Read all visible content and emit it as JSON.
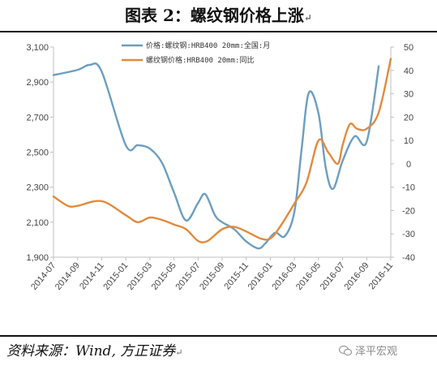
{
  "title": "图表 2：螺纹钢价格上涨",
  "title_mark": "↵",
  "source": "资料来源：Wind, 方正证券",
  "source_mark": "↵",
  "watermark": "泽平宏观",
  "colors": {
    "price": "#6c9ec0",
    "yoy": "#e38a3c",
    "axis": "#bfbfbf",
    "text": "#444444"
  },
  "chart_data": {
    "type": "line",
    "title": "",
    "xlabel": "",
    "ylabel": "",
    "x_ticks": [
      "2014-07",
      "2014-09",
      "2014-11",
      "2015-01",
      "2015-03",
      "2015-05",
      "2015-07",
      "2015-09",
      "2015-11",
      "2016-01",
      "2016-03",
      "2016-05",
      "2016-07",
      "2016-09",
      "2016-11"
    ],
    "y_left": {
      "ticks": [
        "1,900",
        "2,100",
        "2,300",
        "2,500",
        "2,700",
        "2,900",
        "3,100"
      ],
      "ylim": [
        1900,
        3100
      ]
    },
    "y_right": {
      "ticks": [
        "-40",
        "-30",
        "-20",
        "-10",
        "0",
        "10",
        "20",
        "30",
        "40",
        "50"
      ],
      "ylim": [
        -40,
        50
      ]
    },
    "legend_placement": "top-center",
    "series": [
      {
        "name": "价格:螺纹钢:HRB400 20mm:全国:月",
        "axis": "left",
        "x": [
          0,
          1,
          1.5,
          2,
          3,
          3.5,
          4,
          4.5,
          5,
          5.5,
          6,
          6.3,
          6.7,
          7,
          7.5,
          8,
          8.5,
          8.8,
          9.2,
          9.6,
          10,
          10.3,
          10.6,
          11,
          11.3,
          11.6,
          12,
          12.5,
          13,
          13.5
        ],
        "values": [
          2940,
          2970,
          2998,
          2960,
          2540,
          2540,
          2520,
          2440,
          2270,
          2110,
          2210,
          2260,
          2140,
          2100,
          2060,
          1990,
          1950,
          1980,
          2040,
          2020,
          2160,
          2520,
          2840,
          2720,
          2410,
          2290,
          2450,
          2590,
          2560,
          2990
        ]
      },
      {
        "name": "螺纹钢价格:HRB400 20mm:同比",
        "axis": "right",
        "x": [
          0,
          0.6,
          1,
          2,
          3,
          3.5,
          4,
          4.5,
          5,
          5.5,
          6,
          6.4,
          7,
          7.5,
          8,
          8.6,
          9,
          9.4,
          10,
          10.5,
          11,
          11.4,
          11.8,
          12,
          12.3,
          12.6,
          13,
          13.5,
          14
        ],
        "values": [
          -14,
          -18,
          -18,
          -16,
          -22,
          -25,
          -23,
          -24,
          -26,
          -28,
          -33,
          -33,
          -28,
          -27,
          -29,
          -32,
          -32,
          -27,
          -17,
          -8,
          10,
          5,
          0,
          8,
          17,
          15,
          15,
          22,
          45
        ]
      }
    ]
  }
}
